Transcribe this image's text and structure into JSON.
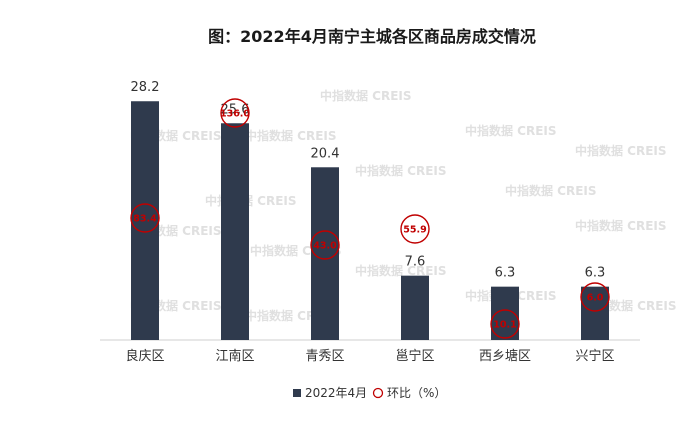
{
  "chart_data": {
    "type": "bar",
    "title": "图：2022年4月南宁主城各区商品房成交情况",
    "categories": [
      "良庆区",
      "江南区",
      "青秀区",
      "邕宁区",
      "西乡塘区",
      "兴宁区"
    ],
    "series": [
      {
        "name": "2022年4月",
        "values": [
          28.2,
          25.6,
          20.4,
          7.6,
          6.3,
          6.3
        ],
        "value_labels": [
          "28.2",
          "25.6",
          "20.4",
          "7.6",
          "6.3",
          "6.3"
        ],
        "color": "#2f3a4d"
      },
      {
        "name": "环比（%）",
        "values": [
          83.4,
          136.0,
          43.0,
          55.9,
          10.1,
          6.0
        ],
        "value_labels": [
          "83.4",
          "136.0",
          "43.0",
          "55.9",
          "10.1",
          "6.0"
        ],
        "color": "#c00000"
      }
    ],
    "ylim": [
      0,
      30
    ],
    "grid": false,
    "legend": "bottom-center"
  },
  "watermark": "中指数据 CREIS"
}
